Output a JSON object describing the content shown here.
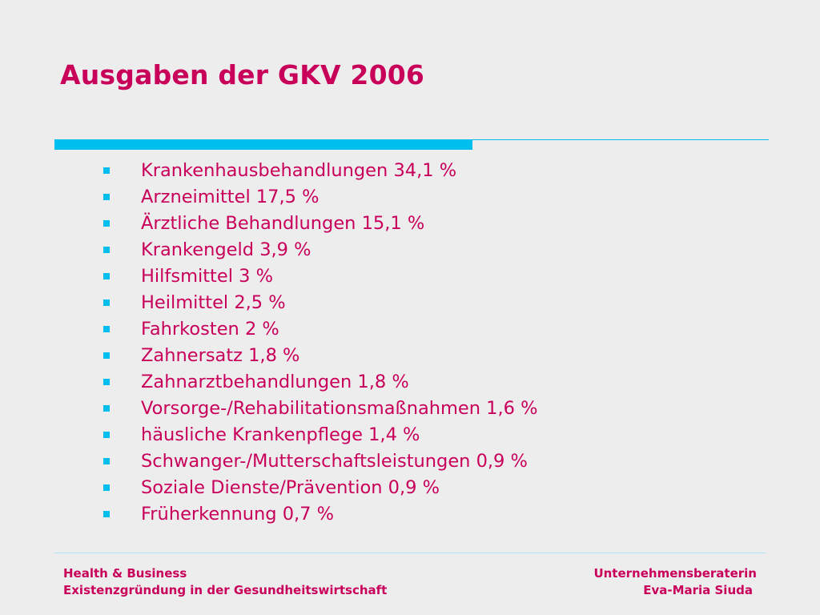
{
  "slide": {
    "title": "Ausgaben der GKV 2006",
    "items": [
      "Krankenhausbehandlungen 34,1 %",
      "Arzneimittel 17,5 %",
      "Ärztliche Behandlungen 15,1 %",
      "Krankengeld 3,9 %",
      "Hilfsmittel 3 %",
      "Heilmittel 2,5 %",
      "Fahrkosten 2 %",
      "Zahnersatz 1,8 %",
      "Zahnarztbehandlungen 1,8 %",
      "Vorsorge-/Rehabilitationsmaßnahmen 1,6 %",
      "häusliche Krankenpflege 1,4 %",
      "Schwanger-/Mutterschaftsleistungen 0,9 %",
      "Soziale Dienste/Prävention 0,9 %",
      "Früherkennung 0,7 %"
    ]
  },
  "footer": {
    "left_line1": "Health & Business",
    "left_line2": "Existenzgründung in der Gesundheitswirtschaft",
    "right_line1": "Unternehmensberaterin",
    "right_line2": "Eva-Maria Siuda"
  },
  "colors": {
    "background": "#eeedee",
    "accent_magenta": "#c8005a",
    "accent_cyan": "#00bfee"
  }
}
